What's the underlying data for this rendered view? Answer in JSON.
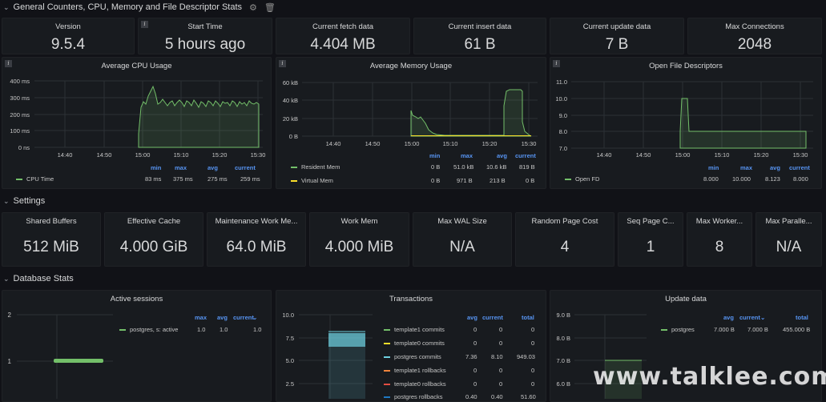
{
  "rows": {
    "general": "General Counters, CPU, Memory and File Descriptor Stats",
    "settings": "Settings",
    "database": "Database Stats"
  },
  "stats_top": [
    {
      "title": "Version",
      "value": "9.5.4"
    },
    {
      "title": "Start Time",
      "value": "5 hours ago"
    },
    {
      "title": "Current fetch data",
      "value": "4.404 MB"
    },
    {
      "title": "Current insert data",
      "value": "61 B"
    },
    {
      "title": "Current update data",
      "value": "7 B"
    },
    {
      "title": "Max Connections",
      "value": "2048"
    }
  ],
  "settings": [
    {
      "title": "Shared Buffers",
      "value": "512 MiB"
    },
    {
      "title": "Effective Cache",
      "value": "4.000 GiB"
    },
    {
      "title": "Maintenance Work Me...",
      "value": "64.0 MiB"
    },
    {
      "title": "Work Mem",
      "value": "4.000 MiB"
    },
    {
      "title": "Max WAL Size",
      "value": "N/A"
    },
    {
      "title": "Random Page Cost",
      "value": "4"
    },
    {
      "title": "Seq Page C...",
      "value": "1"
    },
    {
      "title": "Max Worker...",
      "value": "8"
    },
    {
      "title": "Max Paralle...",
      "value": "N/A"
    }
  ],
  "xticks": [
    "14:40",
    "14:50",
    "15:00",
    "15:10",
    "15:20",
    "15:30"
  ],
  "cpu": {
    "title": "Average CPU Usage",
    "yticks": [
      "400 ms",
      "300 ms",
      "200 ms",
      "100 ms",
      "0 ns"
    ],
    "legend_headers": [
      "min",
      "max",
      "avg",
      "current"
    ],
    "legend_rows": [
      {
        "name": "CPU Time",
        "vals": [
          "83 ms",
          "375 ms",
          "275 ms",
          "259 ms"
        ]
      }
    ]
  },
  "mem": {
    "title": "Average Memory Usage",
    "yticks": [
      "60 kB",
      "40 kB",
      "20 kB",
      "0 B"
    ],
    "legend_headers": [
      "min",
      "max",
      "avg",
      "current"
    ],
    "legend_rows": [
      {
        "name": "Resident Mem",
        "vals": [
          "0 B",
          "51.0 kB",
          "10.6 kB",
          "819 B"
        ]
      },
      {
        "name": "Virtual Mem",
        "vals": [
          "0 B",
          "971 B",
          "213 B",
          "0 B"
        ]
      }
    ]
  },
  "fd": {
    "title": "Open File Descriptors",
    "yticks": [
      "11.0",
      "10.0",
      "9.0",
      "8.0",
      "7.0"
    ],
    "legend_headers": [
      "min",
      "max",
      "avg",
      "current"
    ],
    "legend_rows": [
      {
        "name": "Open FD",
        "vals": [
          "8.000",
          "10.000",
          "8.123",
          "8.000"
        ]
      }
    ]
  },
  "sessions": {
    "title": "Active sessions",
    "yticks": [
      "2",
      "1"
    ],
    "legend_headers": [
      "max",
      "avg",
      "current"
    ],
    "legend_rows": [
      {
        "name": "postgres, s: active",
        "vals": [
          "1.0",
          "1.0",
          "1.0"
        ]
      }
    ]
  },
  "transactions": {
    "title": "Transactions",
    "yticks": [
      "10.0",
      "7.5",
      "5.0",
      "2.5"
    ],
    "legend_headers": [
      "avg",
      "current",
      "total"
    ],
    "legend_rows": [
      {
        "name": "template1 commits",
        "vals": [
          "0",
          "0",
          "0"
        ]
      },
      {
        "name": "template0 commits",
        "vals": [
          "0",
          "0",
          "0"
        ]
      },
      {
        "name": "postgres commits",
        "vals": [
          "7.36",
          "8.10",
          "949.03"
        ]
      },
      {
        "name": "template1 rollbacks",
        "vals": [
          "0",
          "0",
          "0"
        ]
      },
      {
        "name": "template0 rollbacks",
        "vals": [
          "0",
          "0",
          "0"
        ]
      },
      {
        "name": "postgres rollbacks",
        "vals": [
          "0.40",
          "0.40",
          "51.60"
        ]
      }
    ]
  },
  "update": {
    "title": "Update data",
    "yticks": [
      "9.0 B",
      "8.0 B",
      "7.0 B",
      "6.0 B"
    ],
    "legend_headers": [
      "avg",
      "current",
      "total"
    ],
    "legend_rows": [
      {
        "name": "postgres",
        "vals": [
          "7.000 B",
          "7.000 B",
          "455.000 B"
        ]
      }
    ]
  },
  "watermark": "www.talklee.com",
  "colors": {
    "green": "#73bf69",
    "yellow": "#fade2a",
    "cyan": "#6ed0e0",
    "orange": "#ef843c",
    "red": "#e24d42",
    "blue": "#1f78c1",
    "accent": "#5794f2"
  }
}
